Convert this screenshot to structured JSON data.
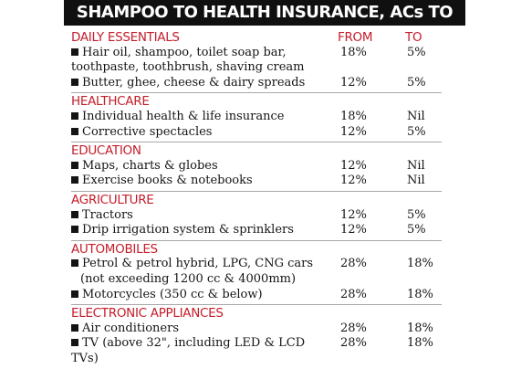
{
  "title": "SHAMPOO TO HEALTH INSURANCE, ACs TO TVs",
  "columns": {
    "from": "FROM",
    "to": "TO"
  },
  "sections": [
    {
      "heading": "DAILY ESSENTIALS",
      "items": [
        {
          "name": "Hair oil, shampoo, toilet soap bar,",
          "name2": "toothpaste, toothbrush, shaving cream",
          "from": "18%",
          "to": "5%"
        },
        {
          "name": "Butter, ghee, cheese & dairy spreads",
          "from": "12%",
          "to": "5%"
        }
      ]
    },
    {
      "heading": "HEALTHCARE",
      "items": [
        {
          "name": "Individual health & life insurance",
          "from": "18%",
          "to": "Nil"
        },
        {
          "name": "Corrective spectacles",
          "from": "12%",
          "to": "5%"
        }
      ]
    },
    {
      "heading": "EDUCATION",
      "items": [
        {
          "name": "Maps, charts & globes",
          "from": "12%",
          "to": "Nil"
        },
        {
          "name": "Exercise books & notebooks",
          "from": "12%",
          "to": "Nil"
        }
      ]
    },
    {
      "heading": "AGRICULTURE",
      "items": [
        {
          "name": "Tractors",
          "from": "12%",
          "to": "5%"
        },
        {
          "name": "Drip irrigation system & sprinklers",
          "from": "12%",
          "to": "5%"
        }
      ]
    },
    {
      "heading": "AUTOMOBILES",
      "items": [
        {
          "name": "Petrol & petrol hybrid, LPG, CNG cars",
          "name2": "(not exceeding 1200 cc & 4000mm)",
          "from": "28%",
          "to": "18%"
        },
        {
          "name": "Motorcycles (350 cc & below)",
          "from": "28%",
          "to": "18%"
        }
      ]
    },
    {
      "heading": "ELECTRONIC APPLIANCES",
      "items": [
        {
          "name": "Air conditioners",
          "from": "28%",
          "to": "18%"
        },
        {
          "name": "TV (above 32\", including LED & LCD TVs)",
          "from": "28%",
          "to": "18%"
        }
      ]
    }
  ]
}
